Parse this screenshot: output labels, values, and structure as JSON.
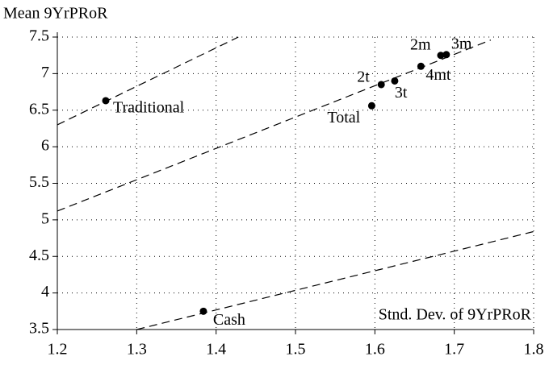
{
  "chart_data": {
    "type": "scatter",
    "y_label": "Mean 9YrPRoR",
    "x_label": "Stnd. Dev. of 9YrPRoR",
    "labels": [
      "Traditional",
      "Cash",
      "Total",
      "2t",
      "3t",
      "4mt",
      "2m",
      "3m"
    ],
    "x": [
      1.261,
      1.384,
      1.596,
      1.608,
      1.625,
      1.658,
      1.683,
      1.69
    ],
    "y": [
      6.63,
      3.75,
      6.56,
      6.85,
      6.9,
      7.1,
      7.25,
      7.26
    ],
    "color": "#000000",
    "lines": [
      {
        "x": [
          1.2,
          1.428
        ],
        "y": [
          6.3,
          7.5
        ]
      },
      {
        "x": [
          1.2,
          1.746
        ],
        "y": [
          5.12,
          7.46
        ]
      },
      {
        "x": [
          1.3,
          1.8
        ],
        "y": [
          3.5,
          4.84
        ]
      }
    ],
    "xlim": [
      1.2,
      1.8
    ],
    "ylim": [
      3.5,
      7.5
    ],
    "xticks": [
      1.2,
      1.3,
      1.4,
      1.5,
      1.6,
      1.7,
      1.8
    ],
    "yticks": [
      3.5,
      4.0,
      4.5,
      5.0,
      5.5,
      6.0,
      6.5,
      7.0,
      7.5
    ],
    "grid": true
  }
}
